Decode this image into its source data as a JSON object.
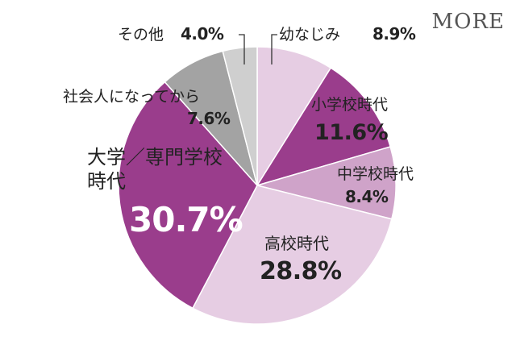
{
  "logo": "MORE",
  "chart_data": {
    "type": "pie",
    "slices": [
      {
        "label": "幼なじみ",
        "value": 8.9,
        "display": "8.9%",
        "color": "#e6cde3"
      },
      {
        "label": "小学校時代",
        "value": 11.6,
        "display": "11.6%",
        "color": "#9a3d8c"
      },
      {
        "label": "中学校時代",
        "value": 8.4,
        "display": "8.4%",
        "color": "#cfa3c9"
      },
      {
        "label": "高校時代",
        "value": 28.8,
        "display": "28.8%",
        "color": "#e6cde3"
      },
      {
        "label": "大学／専門学校時代",
        "value": 30.7,
        "display": "30.7%",
        "color": "#9a3d8c"
      },
      {
        "label": "社会人になってから",
        "value": 7.6,
        "display": "7.6%",
        "color": "#a3a3a3"
      },
      {
        "label": "その他",
        "value": 4.0,
        "display": "4.0%",
        "color": "#cfcfcf"
      }
    ]
  }
}
